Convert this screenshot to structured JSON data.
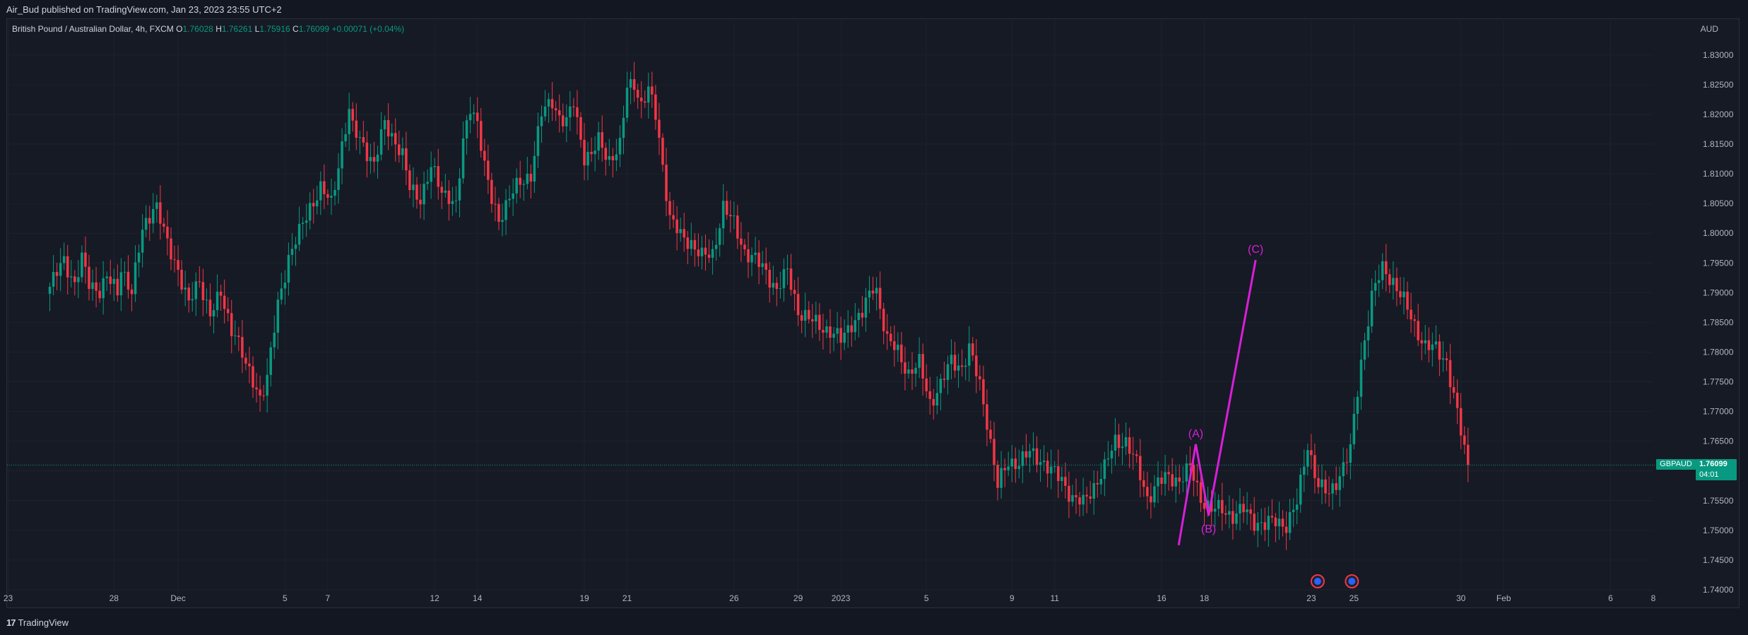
{
  "header": {
    "published": "Air_Bud published on TradingView.com, Jan 23, 2023 23:55 UTC+2"
  },
  "legend": {
    "title": "British Pound / Australian Dollar, 4h, FXCM",
    "o_label": "O",
    "o": "1.76028",
    "h_label": "H",
    "h": "1.76261",
    "l_label": "L",
    "l": "1.75916",
    "c_label": "C",
    "c": "1.76099",
    "change": "+0.00071 (+0.04%)"
  },
  "currency": "AUD",
  "price_tag": {
    "symbol": "GBPAUD",
    "price": "1.76099",
    "countdown": "04:01"
  },
  "footer": {
    "logo": "17",
    "brand": "TradingView"
  },
  "colors": {
    "up": "#089981",
    "down": "#f23645",
    "wave": "#d81fd8",
    "grid": "#1e222d",
    "text": "#b2b5be"
  },
  "chart_data": {
    "type": "candlestick",
    "symbol": "GBPAUD",
    "interval": "4h",
    "ylim": [
      1.7394,
      1.8345
    ],
    "y_ticks": [
      "1.83000",
      "1.82500",
      "1.82000",
      "1.81500",
      "1.81000",
      "1.80500",
      "1.80000",
      "1.79500",
      "1.79000",
      "1.78500",
      "1.78000",
      "1.77500",
      "1.77000",
      "1.76500",
      "1.76000",
      "1.75500",
      "1.75000",
      "1.74500",
      "1.74000"
    ],
    "x_ticks": [
      {
        "label": "23",
        "day": -1.95
      },
      {
        "label": "28",
        "day": 3
      },
      {
        "label": "Dec",
        "day": 6
      },
      {
        "label": "5",
        "day": 11
      },
      {
        "label": "7",
        "day": 13
      },
      {
        "label": "12",
        "day": 18
      },
      {
        "label": "14",
        "day": 20
      },
      {
        "label": "19",
        "day": 25
      },
      {
        "label": "21",
        "day": 27
      },
      {
        "label": "26",
        "day": 32
      },
      {
        "label": "29",
        "day": 35
      },
      {
        "label": "2023",
        "day": 37
      },
      {
        "label": "5",
        "day": 41
      },
      {
        "label": "9",
        "day": 45
      },
      {
        "label": "11",
        "day": 47
      },
      {
        "label": "16",
        "day": 52
      },
      {
        "label": "18",
        "day": 54
      },
      {
        "label": "23",
        "day": 59
      },
      {
        "label": "25",
        "day": 61
      },
      {
        "label": "30",
        "day": 66
      },
      {
        "label": "Feb",
        "day": 68
      },
      {
        "label": "6",
        "day": 73
      },
      {
        "label": "8",
        "day": 75
      }
    ],
    "xlim_days": [
      -2,
      75
    ],
    "candles_per_day": 6,
    "last_close": 1.76099,
    "anchors": [
      [
        0,
        1.791
      ],
      [
        4,
        1.7955
      ],
      [
        7,
        1.7915
      ],
      [
        9,
        1.7955
      ],
      [
        11,
        1.7915
      ],
      [
        14,
        1.7905
      ],
      [
        16,
        1.7925
      ],
      [
        19,
        1.79
      ],
      [
        20,
        1.7945
      ],
      [
        23,
        1.79
      ],
      [
        26,
        1.8005
      ],
      [
        29,
        1.8045
      ],
      [
        30,
        1.8045
      ],
      [
        33,
        1.798
      ],
      [
        36,
        1.794
      ],
      [
        39,
        1.788
      ],
      [
        42,
        1.792
      ],
      [
        45,
        1.7865
      ],
      [
        48,
        1.7895
      ],
      [
        51,
        1.784
      ],
      [
        52,
        1.7835
      ],
      [
        55,
        1.7775
      ],
      [
        58,
        1.774
      ],
      [
        59,
        1.7725
      ],
      [
        61,
        1.7755
      ],
      [
        64,
        1.788
      ],
      [
        67,
        1.796
      ],
      [
        70,
        1.8
      ],
      [
        73,
        1.8045
      ],
      [
        76,
        1.8075
      ],
      [
        79,
        1.805
      ],
      [
        82,
        1.815
      ],
      [
        84,
        1.8205
      ],
      [
        85,
        1.8175
      ],
      [
        88,
        1.815
      ],
      [
        91,
        1.8115
      ],
      [
        94,
        1.8185
      ],
      [
        97,
        1.8155
      ],
      [
        99,
        1.813
      ],
      [
        101,
        1.8075
      ],
      [
        104,
        1.806
      ],
      [
        107,
        1.811
      ],
      [
        110,
        1.807
      ],
      [
        112,
        1.8065
      ],
      [
        114,
        1.8045
      ],
      [
        116,
        1.815
      ],
      [
        118,
        1.8215
      ],
      [
        120,
        1.819
      ],
      [
        122,
        1.811
      ],
      [
        124,
        1.8055
      ],
      [
        126,
        1.8025
      ],
      [
        129,
        1.806
      ],
      [
        132,
        1.8085
      ],
      [
        135,
        1.81
      ],
      [
        138,
        1.82
      ],
      [
        141,
        1.8225
      ],
      [
        143,
        1.8195
      ],
      [
        145,
        1.8185
      ],
      [
        147,
        1.822
      ],
      [
        150,
        1.813
      ],
      [
        152,
        1.813
      ],
      [
        154,
        1.8155
      ],
      [
        157,
        1.8125
      ],
      [
        160,
        1.8145
      ],
      [
        162,
        1.8245
      ],
      [
        164,
        1.8255
      ],
      [
        166,
        1.8215
      ],
      [
        168,
        1.824
      ],
      [
        170,
        1.82
      ],
      [
        171,
        1.816
      ],
      [
        174,
        1.8025
      ],
      [
        177,
        1.7995
      ],
      [
        180,
        1.7985
      ],
      [
        183,
        1.796
      ],
      [
        186,
        1.7965
      ],
      [
        189,
        1.8045
      ],
      [
        192,
        1.8015
      ],
      [
        195,
        1.797
      ],
      [
        198,
        1.7955
      ],
      [
        201,
        1.7935
      ],
      [
        204,
        1.7905
      ],
      [
        207,
        1.7935
      ],
      [
        210,
        1.787
      ],
      [
        213,
        1.7855
      ],
      [
        216,
        1.7845
      ],
      [
        219,
        1.7835
      ],
      [
        222,
        1.782
      ],
      [
        225,
        1.785
      ],
      [
        228,
        1.7865
      ],
      [
        231,
        1.791
      ],
      [
        232,
        1.7905
      ],
      [
        235,
        1.782
      ],
      [
        238,
        1.78
      ],
      [
        241,
        1.7765
      ],
      [
        244,
        1.778
      ],
      [
        247,
        1.7715
      ],
      [
        250,
        1.7745
      ],
      [
        253,
        1.7785
      ],
      [
        256,
        1.7775
      ],
      [
        258,
        1.7805
      ],
      [
        261,
        1.7745
      ],
      [
        263,
        1.7685
      ],
      [
        266,
        1.7575
      ],
      [
        269,
        1.7615
      ],
      [
        272,
        1.7615
      ],
      [
        275,
        1.763
      ],
      [
        278,
        1.762
      ],
      [
        281,
        1.76
      ],
      [
        284,
        1.7585
      ],
      [
        287,
        1.7555
      ],
      [
        290,
        1.7545
      ],
      [
        293,
        1.7575
      ],
      [
        296,
        1.7605
      ],
      [
        299,
        1.765
      ],
      [
        302,
        1.765
      ],
      [
        305,
        1.761
      ],
      [
        308,
        1.7555
      ],
      [
        311,
        1.758
      ],
      [
        314,
        1.759
      ],
      [
        317,
        1.7585
      ],
      [
        320,
        1.7605
      ],
      [
        323,
        1.7555
      ],
      [
        326,
        1.7535
      ],
      [
        329,
        1.7535
      ],
      [
        332,
        1.7525
      ],
      [
        335,
        1.7535
      ],
      [
        338,
        1.7515
      ],
      [
        341,
        1.751
      ],
      [
        344,
        1.7515
      ],
      [
        347,
        1.751
      ],
      [
        350,
        1.7545
      ],
      [
        353,
        1.7645
      ],
      [
        356,
        1.7575
      ],
      [
        359,
        1.756
      ],
      [
        362,
        1.7595
      ],
      [
        365,
        1.7635
      ],
      [
        368,
        1.7785
      ],
      [
        371,
        1.7895
      ],
      [
        374,
        1.794
      ],
      [
        377,
        1.792
      ],
      [
        380,
        1.7885
      ],
      [
        383,
        1.7845
      ],
      [
        386,
        1.781
      ],
      [
        389,
        1.7805
      ],
      [
        392,
        1.7785
      ],
      [
        395,
        1.7695
      ],
      [
        397,
        1.7635
      ],
      [
        398,
        1.761
      ]
    ],
    "annotations": [
      {
        "label": "(A)",
        "day": 53.6,
        "price": 1.7645
      },
      {
        "label": "(B)",
        "day": 54.2,
        "price": 1.7525
      },
      {
        "label": "(C)",
        "day": 56.4,
        "price": 1.7955
      }
    ],
    "wave_points": [
      {
        "day": 52.8,
        "price": 1.7475
      },
      {
        "day": 53.6,
        "price": 1.7645
      },
      {
        "day": 54.2,
        "price": 1.7525
      },
      {
        "day": 56.4,
        "price": 1.7955
      }
    ],
    "event_markers": [
      {
        "day": 59.3
      },
      {
        "day": 60.9
      }
    ]
  }
}
